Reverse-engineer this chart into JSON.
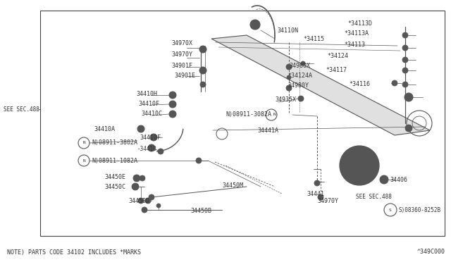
{
  "bg_color": "#ffffff",
  "border_color": "#555555",
  "line_color": "#555555",
  "text_color": "#333333",
  "fig_width": 6.4,
  "fig_height": 3.72,
  "dpi": 100,
  "note_text": "NOTE) PARTS CODE 34102 INCLUDES *MARKS",
  "part_id": "^349C000",
  "see_sec_left": "SEE SEC.488",
  "see_sec_right": "SEE SEC.488",
  "font_size": 6.0
}
